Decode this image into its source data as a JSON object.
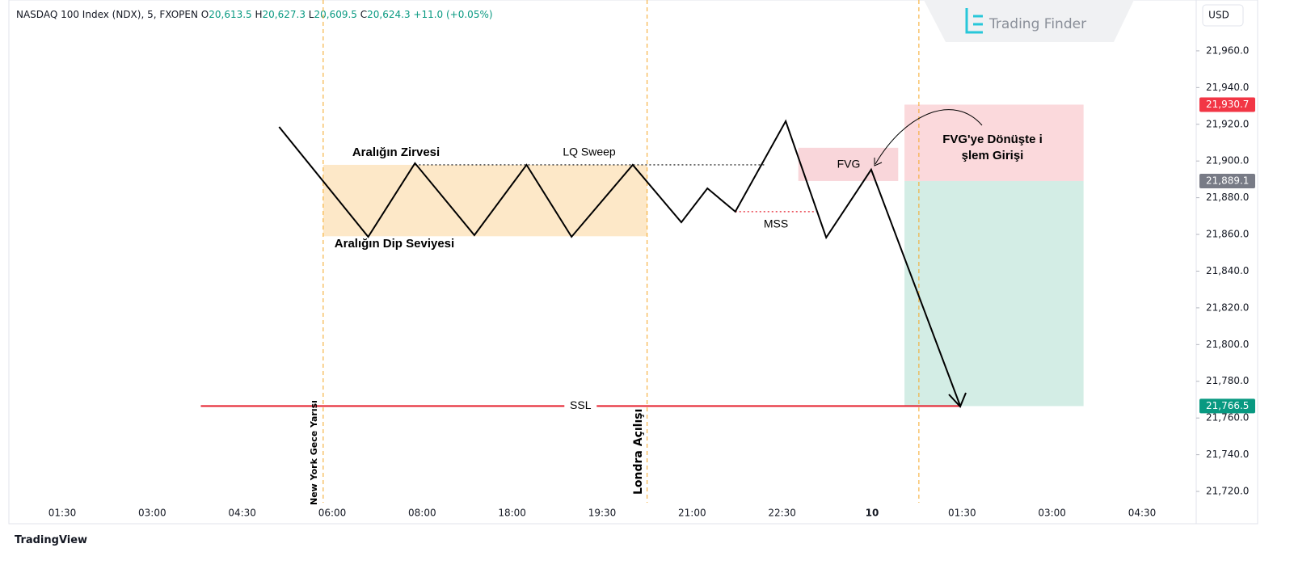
{
  "header": {
    "symbol": "NASDAQ 100 Index (NDX), 5, FXOPEN",
    "ohlc": [
      {
        "key": "O",
        "value": "20,613.5"
      },
      {
        "key": "H",
        "value": "20,627.3"
      },
      {
        "key": "L",
        "value": "20,609.5"
      },
      {
        "key": "C",
        "value": "20,624.3"
      }
    ],
    "change": "+11.0 (+0.05%)"
  },
  "brand": "Trading Finder",
  "currency": "USD",
  "footer_brand": "TradingView",
  "annotations": {
    "range_high": "Aralığın Zirvesi",
    "lq_sweep": "LQ Sweep",
    "range_low": "Aralığın Dip Seviyesi",
    "mss": "MSS",
    "fvg": "FVG",
    "entry": [
      "FVG'ye Dönüşte i",
      "şlem Girişi"
    ],
    "ny_midnight": "New York Gece Yarısı",
    "london_open": "Londra Açılışı"
  },
  "chart_data": {
    "type": "line",
    "categories": [
      "01:30",
      "03:00",
      "04:30",
      "06:00",
      "08:00",
      "18:00",
      "19:30",
      "21:00",
      "22:30",
      "10",
      "01:30",
      "03:00",
      "04:30"
    ],
    "ylim": [
      21702.4,
      21987.7
    ],
    "yticks": [
      {
        "value": 21720,
        "label": "21,720.0"
      },
      {
        "value": 21740,
        "label": "21,740.0"
      },
      {
        "value": 21760,
        "label": "21,760.0"
      },
      {
        "value": 21780,
        "label": "21,780.0"
      },
      {
        "value": 21800,
        "label": "21,800.0"
      },
      {
        "value": 21820,
        "label": "21,820.0"
      },
      {
        "value": 21840,
        "label": "21,840.0"
      },
      {
        "value": 21860,
        "label": "21,860.0"
      },
      {
        "value": 21880,
        "label": "21,880.0"
      },
      {
        "value": 21900,
        "label": "21,900.0"
      },
      {
        "value": 21920,
        "label": "21,920.0"
      },
      {
        "value": 21940,
        "label": "21,940.0"
      },
      {
        "value": 21960,
        "label": "21,960.0"
      }
    ],
    "series": [
      {
        "color": "#000000",
        "x": [
          2.41,
          3.4,
          3.92,
          4.58,
          5.16,
          5.66,
          6.34,
          6.88,
          7.17,
          7.48,
          8.04,
          8.49,
          8.99,
          9.98
        ],
        "values": [
          21918.6,
          21858.7,
          21898.8,
          21859.6,
          21897.9,
          21858.7,
          21897.9,
          21866.6,
          21885.1,
          21872.4,
          21921.7,
          21858.3,
          21895.3,
          21766.5
        ]
      }
    ],
    "zones": [
      {
        "x": [
          2.9,
          6.5
        ],
        "top": 21897.9,
        "bottom": 21859.0,
        "color": "#fde8c8"
      },
      {
        "x": [
          8.18,
          9.29
        ],
        "top": 21907.2,
        "bottom": 21889.1,
        "color": "#f9d6da"
      },
      {
        "x": [
          9.36,
          11.35
        ],
        "top": 21930.7,
        "bottom": 21889.1,
        "color": "#fbd9dc"
      },
      {
        "x": [
          9.36,
          11.35
        ],
        "top": 21889.1,
        "bottom": 21766.5,
        "color": "#d3ede5"
      }
    ],
    "levels": [
      {
        "label": "SSL",
        "value": 21766.5,
        "x": [
          1.54,
          9.98
        ],
        "color": "#e5202e",
        "style": "solid"
      },
      {
        "value": 21897.9,
        "x": [
          3.92,
          7.8
        ],
        "color": "#333333",
        "style": "dotted"
      },
      {
        "value": 21872.4,
        "x": [
          7.48,
          8.38
        ],
        "color": "#e5202e",
        "style": "dotted"
      }
    ],
    "sessions": [
      2.9,
      6.5,
      9.52
    ],
    "session_color": "#f5a623",
    "price_tags": [
      {
        "value": 21930.7,
        "label": "21,930.7",
        "color": "#f23645"
      },
      {
        "value": 21889.1,
        "label": "21,889.1",
        "color": "#787b86"
      },
      {
        "value": 21766.5,
        "label": "21,766.5",
        "color": "#089981"
      }
    ]
  }
}
